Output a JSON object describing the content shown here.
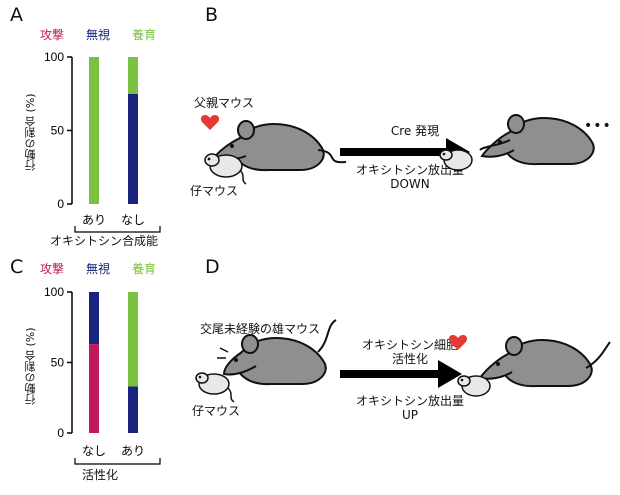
{
  "colors": {
    "attack": "#c2185b",
    "ignore": "#1a237e",
    "care": "#7cc242",
    "mouse_body": "#8f8f8f",
    "pup_body": "#e8e8e8",
    "heart": "#e53935",
    "arrow": "#000000"
  },
  "panel_a": {
    "letter": "A",
    "legend": {
      "attack": "攻撃",
      "ignore": "無視",
      "care": "養育"
    },
    "ylabel": "行動の割合 (%)",
    "xlabel": "オキシトシン合成能",
    "yticks": [
      "100",
      "50",
      "0"
    ]
  },
  "panel_b": {
    "letter": "B",
    "father_label": "父親マウス",
    "pup_label": "仔マウス",
    "arrow_top": "Cre 発現",
    "arrow_bottom_1": "オキシトシン放出量",
    "arrow_bottom_2": "DOWN",
    "ellipsis": "•••",
    "icons": [
      "heart-icon",
      "father-mouse-icon",
      "pup-mouse-icon",
      "arrow-right-icon"
    ]
  },
  "panel_c": {
    "letter": "C",
    "legend": {
      "attack": "攻撃",
      "ignore": "無視",
      "care": "養育"
    },
    "ylabel": "行動の割合 (%)",
    "xlabel": "活性化",
    "yticks": [
      "100",
      "50",
      "0"
    ]
  },
  "panel_d": {
    "letter": "D",
    "virgin_label": "交尾未経験の雄マウス",
    "pup_label": "仔マウス",
    "arrow_top_1": "オキシトシン細胞",
    "arrow_top_2": "活性化",
    "arrow_bottom_1": "オキシトシン放出量",
    "arrow_bottom_2": "UP",
    "icons": [
      "heart-icon",
      "virgin-male-mouse-icon",
      "pup-mouse-icon",
      "arrow-right-icon"
    ]
  },
  "chart_data": [
    {
      "type": "bar",
      "stacked": true,
      "title": "",
      "xlabel": "オキシトシン合成能",
      "ylabel": "行動の割合 (%)",
      "ylim": [
        0,
        100
      ],
      "yticks": [
        0,
        50,
        100
      ],
      "categories": [
        "あり",
        "なし"
      ],
      "series": [
        {
          "name": "攻撃",
          "values": [
            0,
            0
          ]
        },
        {
          "name": "無視",
          "values": [
            0,
            75
          ]
        },
        {
          "name": "養育",
          "values": [
            100,
            25
          ]
        }
      ]
    },
    {
      "type": "bar",
      "stacked": true,
      "title": "",
      "xlabel": "活性化",
      "ylabel": "行動の割合 (%)",
      "ylim": [
        0,
        100
      ],
      "yticks": [
        0,
        50,
        100
      ],
      "categories": [
        "なし",
        "あり"
      ],
      "series": [
        {
          "name": "攻撃",
          "values": [
            63,
            0
          ]
        },
        {
          "name": "無視",
          "values": [
            37,
            33
          ]
        },
        {
          "name": "養育",
          "values": [
            0,
            67
          ]
        }
      ]
    }
  ]
}
